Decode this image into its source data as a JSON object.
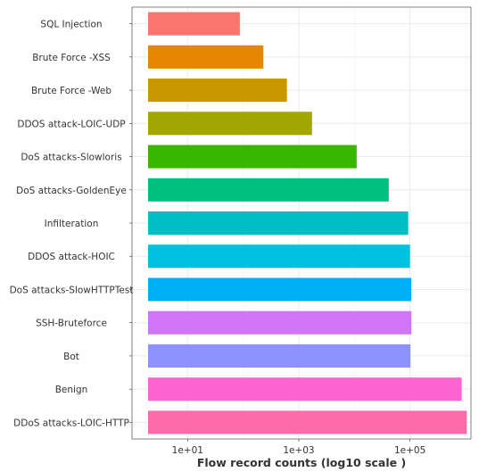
{
  "chart_data": {
    "type": "bar",
    "orientation": "horizontal",
    "categories": [
      "SQL Injection",
      "Brute Force -XSS",
      "Brute Force -Web",
      "DDOS attack-LOIC-UDP",
      "DoS attacks-Slowloris",
      "DoS attacks-GoldenEye",
      "Infilteration",
      "DDOS attack-HOIC",
      "DoS attacks-SlowHTTPTest",
      "SSH-Bruteforce",
      "Bot",
      "Benign",
      "DDoS attacks-LOIC-HTTP"
    ],
    "values": [
      87,
      230,
      611,
      1730,
      10990,
      41508,
      93063,
      100000,
      105000,
      106000,
      102000,
      850000,
      1050000
    ],
    "colors": [
      "#f8766d",
      "#e58700",
      "#c99800",
      "#a3a500",
      "#39b600",
      "#00c07f",
      "#00bfc4",
      "#00c2e0",
      "#00b0f6",
      "#d074f9",
      "#8e92ff",
      "#ff62d2",
      "#ff6ba9"
    ],
    "x_scale": "log10",
    "xlim": [
      1,
      1250000
    ],
    "x_ticks": [
      10,
      1000,
      100000
    ],
    "x_tick_labels": [
      "1e+01",
      "1e+03",
      "1e+05"
    ],
    "xlabel": "Flow record counts (log10 scale )",
    "ylabel": "",
    "grid": true,
    "legend": "none"
  }
}
